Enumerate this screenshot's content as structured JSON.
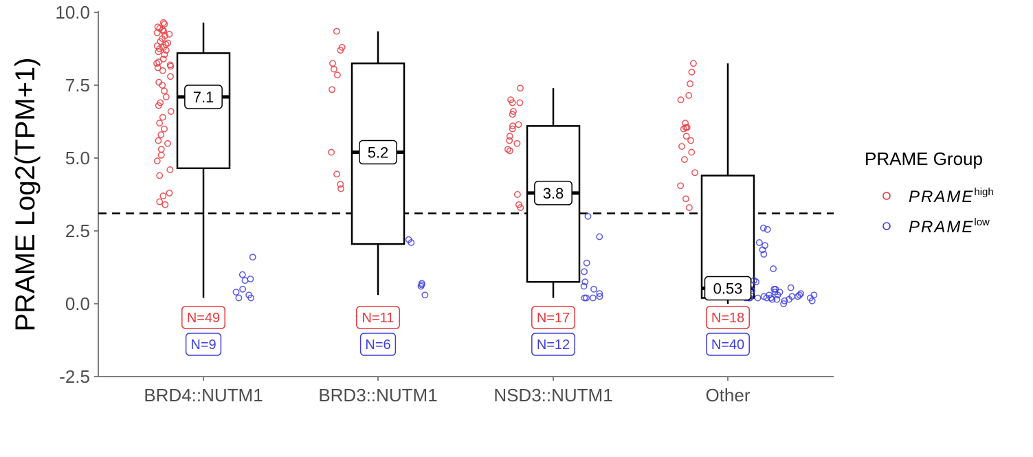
{
  "chart_data": {
    "type": "box",
    "title": "",
    "xlabel": "",
    "ylabel": "PRAME Log2(TPM+1)",
    "ylim": [
      -2.5,
      10
    ],
    "yticks": [
      "10.0",
      "7.5",
      "5.0",
      "2.5",
      "0.0",
      "-2.5"
    ],
    "threshold_line": 3.1,
    "categories": [
      "BRD4::NUTM1",
      "BRD3::NUTM1",
      "NSD3::NUTM1",
      "Other"
    ],
    "boxes": [
      {
        "category": "BRD4::NUTM1",
        "whisker_low": 0.2,
        "q1": 4.65,
        "median": 7.1,
        "q3": 8.6,
        "whisker_high": 9.65,
        "median_label": "7.1"
      },
      {
        "category": "BRD3::NUTM1",
        "whisker_low": 0.3,
        "q1": 2.05,
        "median": 5.2,
        "q3": 8.25,
        "whisker_high": 9.35,
        "median_label": "5.2"
      },
      {
        "category": "NSD3::NUTM1",
        "whisker_low": 0.2,
        "q1": 0.75,
        "median": 3.8,
        "q3": 6.1,
        "whisker_high": 7.4,
        "median_label": "3.8"
      },
      {
        "category": "Other",
        "whisker_low": 0.0,
        "q1": 0.2,
        "median": 0.53,
        "q3": 4.4,
        "whisker_high": 8.25,
        "median_label": "0.53"
      }
    ],
    "counts": [
      {
        "category": "BRD4::NUTM1",
        "high": "N=49",
        "low": "N=9"
      },
      {
        "category": "BRD3::NUTM1",
        "high": "N=11",
        "low": "N=6"
      },
      {
        "category": "NSD3::NUTM1",
        "high": "N=17",
        "low": "N=12"
      },
      {
        "category": "Other",
        "high": "N=18",
        "low": "N=40"
      }
    ],
    "series": [
      {
        "name": "PRAME high",
        "legend_base": "PRAME",
        "legend_sup": "high",
        "color": "#e8383d",
        "points": [
          {
            "category": "BRD4::NUTM1",
            "values": [
              9.65,
              9.6,
              9.5,
              9.45,
              9.4,
              9.35,
              9.3,
              9.25,
              9.2,
              9.1,
              9.0,
              8.95,
              8.9,
              8.85,
              8.8,
              8.75,
              8.7,
              8.65,
              8.55,
              8.4,
              8.3,
              8.25,
              8.2,
              8.15,
              8.1,
              8.0,
              7.8,
              7.6,
              7.5,
              7.3,
              7.1,
              6.9,
              6.8,
              6.6,
              6.4,
              6.2,
              6.0,
              5.8,
              5.6,
              5.5,
              5.3,
              5.1,
              4.9,
              4.6,
              4.4,
              3.8,
              3.7,
              3.5,
              3.4
            ]
          },
          {
            "category": "BRD3::NUTM1",
            "values": [
              9.35,
              8.8,
              8.7,
              8.25,
              8.05,
              7.85,
              7.35,
              5.2,
              4.45,
              3.95,
              4.1
            ]
          },
          {
            "category": "NSD3::NUTM1",
            "values": [
              7.4,
              7.0,
              6.9,
              6.6,
              6.5,
              6.15,
              6.1,
              6.0,
              5.75,
              5.6,
              5.5,
              5.3,
              5.25,
              3.75,
              3.4,
              3.3,
              6.9
            ]
          },
          {
            "category": "Other",
            "values": [
              8.25,
              7.95,
              7.55,
              7.15,
              7.0,
              6.2,
              6.05,
              6.0,
              5.75,
              5.6,
              5.2,
              4.95,
              4.5,
              4.05,
              3.6,
              3.3,
              6.05,
              5.4
            ]
          }
        ]
      },
      {
        "name": "PRAME low",
        "legend_base": "PRAME",
        "legend_sup": "low",
        "color": "#3f3fe0",
        "points": [
          {
            "category": "BRD4::NUTM1",
            "values": [
              1.6,
              1.0,
              0.85,
              0.8,
              0.5,
              0.4,
              0.3,
              0.2,
              0.2
            ]
          },
          {
            "category": "BRD3::NUTM1",
            "values": [
              2.2,
              2.1,
              0.7,
              0.65,
              0.6,
              0.3
            ]
          },
          {
            "category": "NSD3::NUTM1",
            "values": [
              3.0,
              2.3,
              1.4,
              1.1,
              0.75,
              0.6,
              0.5,
              0.35,
              0.25,
              0.2,
              0.2,
              0.2
            ]
          },
          {
            "category": "Other",
            "values": [
              2.6,
              2.55,
              2.1,
              2.0,
              1.85,
              1.7,
              1.2,
              0.8,
              0.75,
              0.6,
              0.55,
              0.5,
              0.5,
              0.45,
              0.4,
              0.4,
              0.35,
              0.35,
              0.3,
              0.3,
              0.3,
              0.3,
              0.25,
              0.25,
              0.25,
              0.2,
              0.2,
              0.2,
              0.2,
              0.2,
              0.2,
              0.2,
              0.2,
              0.15,
              0.15,
              0.15,
              0.1,
              0.1,
              0.0,
              0.5
            ]
          }
        ]
      }
    ],
    "legend": {
      "title": "PRAME Group",
      "placement": "right"
    }
  }
}
